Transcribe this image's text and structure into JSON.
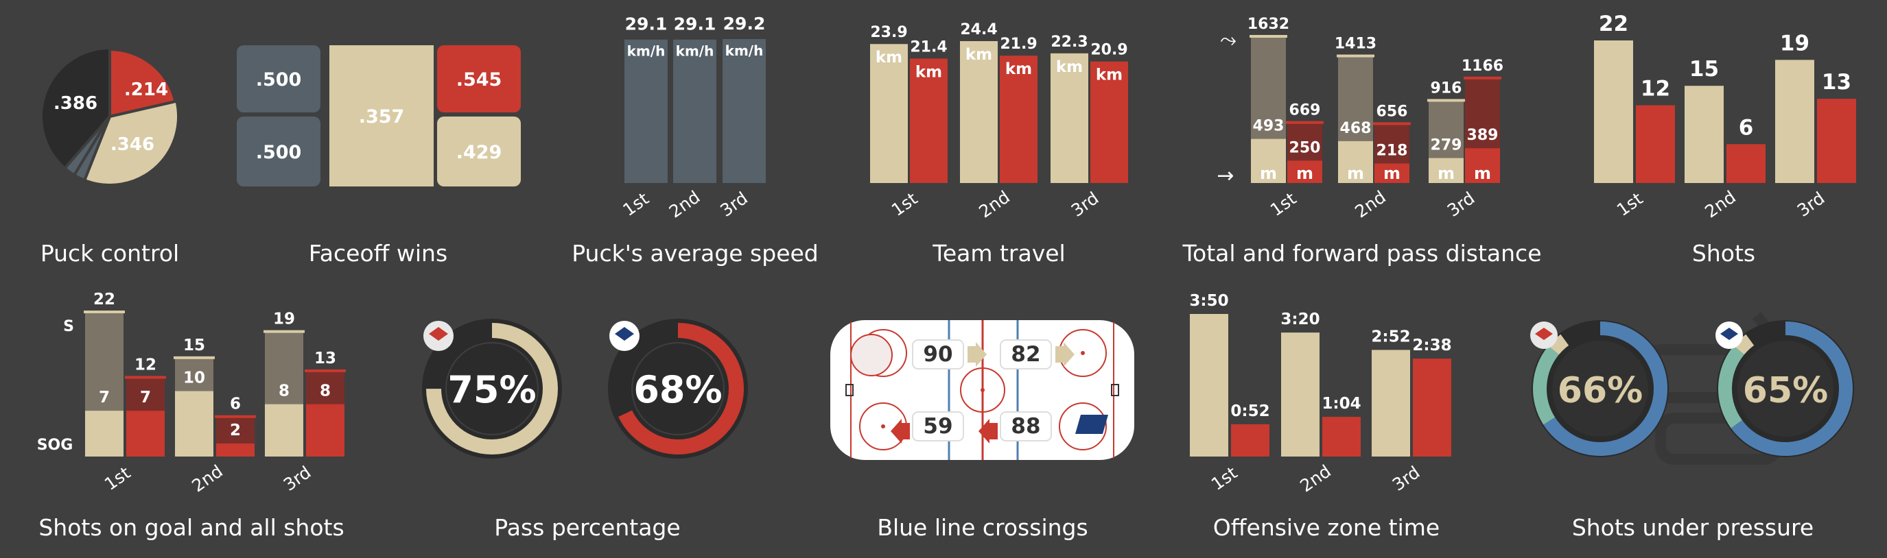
{
  "colors": {
    "background": "#3f3f3f",
    "home": "#d8cba6",
    "away": "#c8392f",
    "neutral": "#56616a",
    "dark": "#2b2b2b",
    "blue": "#4f7fb1",
    "teal": "#7fb9a6",
    "home_total": "#7c7467",
    "away_total": "#7a2e2a",
    "text": "#ffffff"
  },
  "periods": [
    "1st",
    "2nd",
    "3rd"
  ],
  "captions": {
    "puck_control": "Puck control",
    "faceoff_wins": "Faceoff wins",
    "puck_speed": "Puck's average speed",
    "team_travel": "Team travel",
    "pass_distance": "Total and forward pass distance",
    "shots": "Shots",
    "shots_on_goal": "Shots on goal and all shots",
    "pass_percentage": "Pass percentage",
    "blue_line": "Blue line crossings",
    "offensive_zone": "Offensive zone time",
    "shots_pressure": "Shots under pressure"
  },
  "chart_data": [
    {
      "id": "puck_control",
      "type": "pie",
      "slices": [
        {
          "label": ".214",
          "value": 0.214,
          "color": "#c8392f"
        },
        {
          "label": ".346",
          "value": 0.346,
          "color": "#d8cba6"
        },
        {
          "label": "",
          "value": 0.027,
          "color": "#56616a"
        },
        {
          "label": "",
          "value": 0.027,
          "color": "#56616a"
        },
        {
          "label": ".386",
          "value": 0.386,
          "color": "#2b2b2b"
        }
      ]
    },
    {
      "id": "faceoff_wins",
      "type": "heatmap",
      "cells": [
        {
          "label": ".500",
          "value": 0.5,
          "color": "#56616a"
        },
        {
          "label": ".500",
          "value": 0.5,
          "color": "#56616a"
        },
        {
          "label": ".357",
          "value": 0.357,
          "color": "#d8cba6"
        },
        {
          "label": ".545",
          "value": 0.545,
          "color": "#c8392f"
        },
        {
          "label": ".429",
          "value": 0.429,
          "color": "#d8cba6"
        }
      ]
    },
    {
      "id": "puck_speed",
      "type": "bar",
      "categories": [
        "1st",
        "2nd",
        "3rd"
      ],
      "values": [
        29.1,
        29.1,
        29.2
      ],
      "value_labels": [
        "29.1",
        "29.1",
        "29.2"
      ],
      "unit": "km/h",
      "ylim": [
        0,
        29.2
      ]
    },
    {
      "id": "team_travel",
      "type": "bar",
      "categories": [
        "1st",
        "2nd",
        "3rd"
      ],
      "unit": "km",
      "ylim": [
        0,
        24.4
      ],
      "series": [
        {
          "values": [
            23.9,
            24.4,
            22.3
          ],
          "value_labels": [
            "23.9",
            "24.4",
            "22.3"
          ],
          "color": "#d8cba6"
        },
        {
          "values": [
            21.4,
            21.9,
            20.9
          ],
          "value_labels": [
            "21.4",
            "21.9",
            "20.9"
          ],
          "color": "#c8392f"
        }
      ]
    },
    {
      "id": "pass_distance",
      "type": "bar",
      "categories": [
        "1st",
        "2nd",
        "3rd"
      ],
      "unit": "m",
      "ylim": [
        0,
        1632
      ],
      "series": [
        {
          "total": [
            1632,
            1413,
            916
          ],
          "total_labels": [
            "1632",
            "1413",
            "916"
          ],
          "forward": [
            493,
            468,
            279
          ],
          "forward_labels": [
            "493",
            "468",
            "279"
          ],
          "color": "#d8cba6",
          "total_color": "#7c7467"
        },
        {
          "total": [
            669,
            656,
            1166
          ],
          "total_labels": [
            "669",
            "656",
            "1166"
          ],
          "forward": [
            250,
            218,
            389
          ],
          "forward_labels": [
            "250",
            "218",
            "389"
          ],
          "color": "#c8392f",
          "total_color": "#7a2e2a"
        }
      ]
    },
    {
      "id": "shots",
      "type": "bar",
      "categories": [
        "1st",
        "2nd",
        "3rd"
      ],
      "ylim": [
        0,
        22
      ],
      "series": [
        {
          "values": [
            22,
            15,
            19
          ],
          "value_labels": [
            "22",
            "15",
            "19"
          ],
          "color": "#d8cba6"
        },
        {
          "values": [
            12,
            6,
            13
          ],
          "value_labels": [
            "12",
            "6",
            "13"
          ],
          "color": "#c8392f"
        }
      ]
    },
    {
      "id": "shots_on_goal",
      "type": "bar",
      "categories": [
        "1st",
        "2nd",
        "3rd"
      ],
      "axis_top_label": "S",
      "axis_bottom_label": "SOG",
      "ylim": [
        0,
        22
      ],
      "series": [
        {
          "shots": [
            22,
            15,
            19
          ],
          "shots_labels": [
            "22",
            "15",
            "19"
          ],
          "sog": [
            7,
            10,
            8
          ],
          "sog_labels": [
            "7",
            "10",
            "8"
          ],
          "color": "#d8cba6",
          "total_color": "#7c7467"
        },
        {
          "shots": [
            12,
            6,
            13
          ],
          "shots_labels": [
            "12",
            "6",
            "13"
          ],
          "sog": [
            7,
            2,
            8
          ],
          "sog_labels": [
            "7",
            "2",
            "8"
          ],
          "color": "#c8392f",
          "total_color": "#7a2e2a"
        }
      ]
    },
    {
      "id": "pass_percentage",
      "type": "pie",
      "donuts": [
        {
          "value": 0.75,
          "label": "75%",
          "color": "#d8cba6",
          "label_color": "#ffffff"
        },
        {
          "value": 0.68,
          "label": "68%",
          "color": "#c8392f",
          "label_color": "#ffffff"
        }
      ]
    },
    {
      "id": "blue_line",
      "type": "table",
      "top": {
        "left_value": "90",
        "right_value": "82"
      },
      "bottom": {
        "left_value": "59",
        "right_value": "88"
      }
    },
    {
      "id": "offensive_zone",
      "type": "bar",
      "categories": [
        "1st",
        "2nd",
        "3rd"
      ],
      "ylim": [
        0,
        230
      ],
      "series": [
        {
          "values": [
            230,
            200,
            172
          ],
          "value_labels": [
            "3:50",
            "3:20",
            "2:52"
          ],
          "color": "#d8cba6"
        },
        {
          "values": [
            52,
            64,
            158
          ],
          "value_labels": [
            "0:52",
            "1:04",
            "2:38"
          ],
          "color": "#c8392f"
        }
      ]
    },
    {
      "id": "shots_pressure",
      "type": "pie",
      "donuts": [
        {
          "label": "66%",
          "label_color": "#d8cba6",
          "segments": [
            {
              "value": 0.66,
              "color": "#4f7fb1"
            },
            {
              "value": 0.2,
              "color": "#7fb9a6"
            },
            {
              "value": 0.04,
              "color": "#d8cba6"
            },
            {
              "value": 0.1,
              "color": "#2b2b2b"
            }
          ]
        },
        {
          "label": "65%",
          "label_color": "#d8cba6",
          "segments": [
            {
              "value": 0.65,
              "color": "#4f7fb1"
            },
            {
              "value": 0.21,
              "color": "#7fb9a6"
            },
            {
              "value": 0.04,
              "color": "#d8cba6"
            },
            {
              "value": 0.1,
              "color": "#2b2b2b"
            }
          ]
        }
      ]
    }
  ]
}
